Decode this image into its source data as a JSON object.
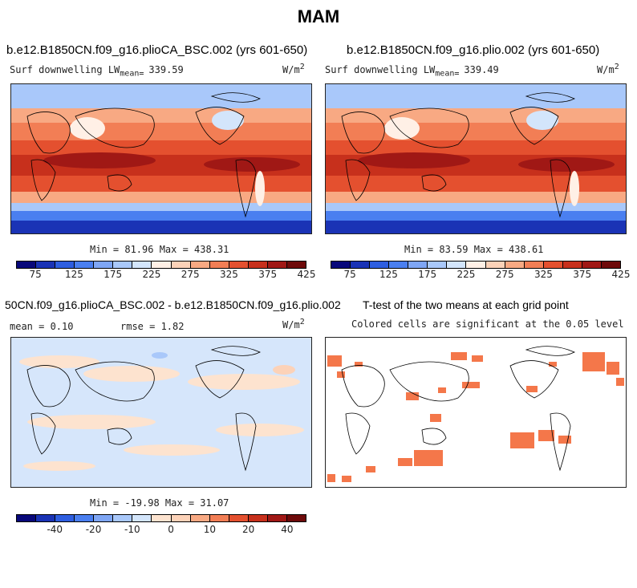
{
  "figure_title": "MAM",
  "panels": [
    {
      "title": "b.e12.B1850CN.f09_g16.plioCA_BSC.002 (yrs 601-650)",
      "var_label": "Surf downwelling LW",
      "mean_prefix": "mean= ",
      "mean": "339.59",
      "units": "W/m",
      "units_sup": "2",
      "stats": "Min =  81.96 Max = 438.31"
    },
    {
      "title": "b.e12.B1850CN.f09_g16.plio.002 (yrs 601-650)",
      "var_label": "Surf downwelling LW",
      "mean_prefix": "mean= ",
      "mean": "339.49",
      "units": "W/m",
      "units_sup": "2",
      "stats": "Min =  83.59 Max = 438.61"
    },
    {
      "title": "50CN.f09_g16.plioCA_BSC.002 - b.e12.B1850CN.f09_g16.plio.002",
      "mean_label": "mean =   0.10",
      "rmse_label": "rmse =   1.82",
      "units": "W/m",
      "units_sup": "2",
      "stats": "Min = -19.98 Max =  31.07"
    },
    {
      "title": "T-test of the two means at each grid point",
      "subtitle": "Colored cells are significant at the 0.05 level"
    }
  ],
  "chart_data": [
    {
      "type": "heatmap",
      "title": "b.e12.B1850CN.f09_g16.plioCA_BSC.002 (yrs 601-650)",
      "variable": "Surf downwelling LW",
      "units": "W/m2",
      "mean": 339.59,
      "min": 81.96,
      "max": 438.31,
      "colorbar": {
        "levels": [
          75,
          100,
          125,
          150,
          175,
          200,
          225,
          250,
          275,
          300,
          325,
          350,
          375,
          400,
          425
        ],
        "tick_labels": [
          "75",
          "125",
          "175",
          "225",
          "275",
          "325",
          "375",
          "425"
        ]
      }
    },
    {
      "type": "heatmap",
      "title": "b.e12.B1850CN.f09_g16.plio.002 (yrs 601-650)",
      "variable": "Surf downwelling LW",
      "units": "W/m2",
      "mean": 339.49,
      "min": 83.59,
      "max": 438.61,
      "colorbar": {
        "levels": [
          75,
          100,
          125,
          150,
          175,
          200,
          225,
          250,
          275,
          300,
          325,
          350,
          375,
          400,
          425
        ],
        "tick_labels": [
          "75",
          "125",
          "175",
          "225",
          "275",
          "325",
          "375",
          "425"
        ]
      }
    },
    {
      "type": "heatmap",
      "title": "50CN.f09_g16.plioCA_BSC.002 - b.e12.B1850CN.f09_g16.plio.002",
      "units": "W/m2",
      "mean": 0.1,
      "rmse": 1.82,
      "min": -19.98,
      "max": 31.07,
      "colorbar": {
        "levels": [
          -50,
          -40,
          -30,
          -20,
          -15,
          -10,
          -5,
          0,
          5,
          10,
          15,
          20,
          30,
          40,
          50
        ],
        "tick_labels": [
          "-40",
          "-20",
          "-10",
          "0",
          "10",
          "20",
          "40"
        ]
      }
    },
    {
      "type": "heatmap",
      "title": "T-test of the two means at each grid point",
      "subtitle": "Colored cells are significant at the 0.05 level",
      "significance_level": 0.05
    }
  ],
  "colors": {
    "abs_scale": [
      "#08087a",
      "#1a33b5",
      "#2e5ee0",
      "#4a7ff0",
      "#7fa6f5",
      "#a9c8fa",
      "#d3e5fb",
      "#fff0e6",
      "#fcd2b8",
      "#f8a983",
      "#f27e55",
      "#e4502f",
      "#c7301c",
      "#a01815",
      "#6e0a0a"
    ],
    "diff_scale": [
      "#08087a",
      "#1a33b5",
      "#2e5ee0",
      "#4a7ff0",
      "#7fa6f5",
      "#a9c8fa",
      "#d3e5fb",
      "#fde3cf",
      "#fcd2b8",
      "#f8a983",
      "#f27e55",
      "#e4502f",
      "#c7301c",
      "#a01815",
      "#6e0a0a"
    ],
    "significance": "#f4774a",
    "diff_background": "#d6e6fb"
  }
}
